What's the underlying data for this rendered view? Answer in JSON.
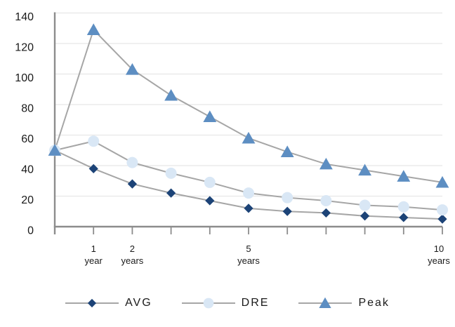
{
  "chart_data": {
    "type": "line",
    "x": [
      0,
      1,
      2,
      3,
      4,
      5,
      6,
      7,
      8,
      9,
      10
    ],
    "xlim": [
      0,
      10
    ],
    "ylim": [
      0,
      140
    ],
    "y_ticks": [
      0,
      20,
      40,
      60,
      80,
      100,
      120,
      140
    ],
    "x_tick_labels": [
      {
        "x": 1,
        "line1": "1",
        "line2": "year"
      },
      {
        "x": 2,
        "line1": "2",
        "line2": "years"
      },
      {
        "x": 5,
        "line1": "5",
        "line2": "years"
      },
      {
        "x": 10,
        "line1": "10",
        "line2": "years"
      }
    ],
    "grid": true,
    "legend_position": "bottom",
    "series": [
      {
        "name": "AVG",
        "marker": "diamond",
        "color": "#1c4377",
        "values": [
          50,
          38,
          28,
          22,
          17,
          12,
          10,
          9,
          7,
          6,
          5
        ]
      },
      {
        "name": "DRE",
        "marker": "circle",
        "color": "#d9e7f5",
        "values": [
          50,
          56,
          42,
          35,
          29,
          22,
          19,
          17,
          14,
          13,
          11
        ]
      },
      {
        "name": "Peak",
        "marker": "triangle",
        "color": "#5d8ec2",
        "values": [
          50,
          129,
          103,
          86,
          72,
          58,
          49,
          41,
          37,
          33,
          29
        ]
      }
    ],
    "colors": {
      "series_line": "#a6a6a6",
      "gridline": "#e7e7e7",
      "axis": "#8c8c8c",
      "text": "#1a1a1a"
    }
  }
}
